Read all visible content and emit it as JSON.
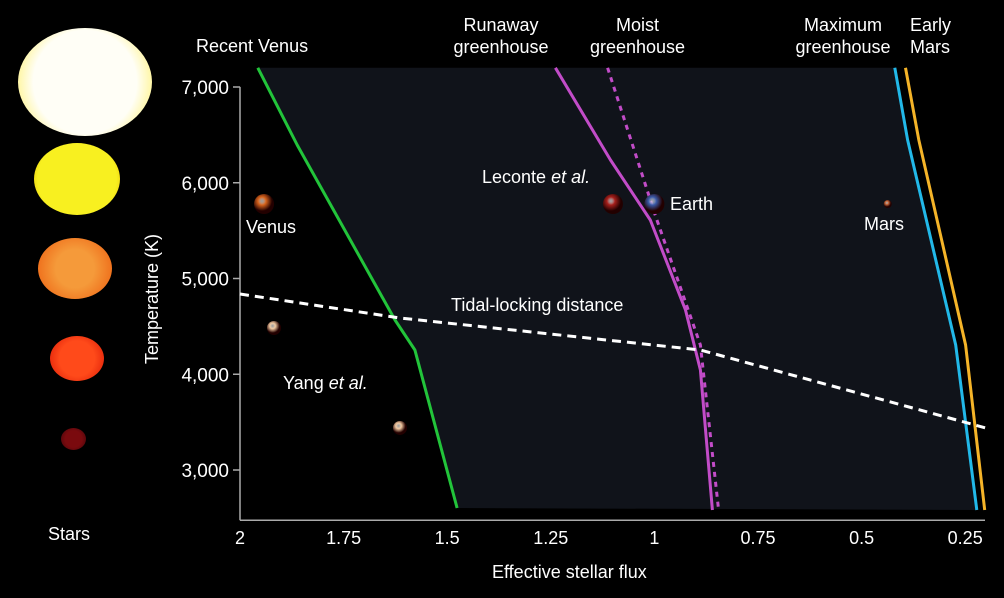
{
  "stars": {
    "label": "Stars",
    "colors": [
      "#fffbe8",
      "#f6ee10",
      "#f08a2a",
      "#f2300e",
      "#5a0608"
    ]
  },
  "chart_data": {
    "type": "line",
    "xlabel": "Effective stellar flux",
    "ylabel": "Temperature (K)",
    "xlim": [
      2.0,
      0.2
    ],
    "ylim": [
      2580,
      7200
    ],
    "x_reversed": true,
    "x_ticks": [
      2,
      1.75,
      1.5,
      1.25,
      1,
      0.75,
      0.5,
      0.25
    ],
    "x_tick_labels": [
      "2",
      "1.75",
      "1.5",
      "1.25",
      "1",
      "0.75",
      "0.5",
      "0.25"
    ],
    "y_ticks": [
      3000,
      4000,
      5000,
      6000,
      7000
    ],
    "y_tick_labels": [
      "3,000",
      "4,000",
      "5,000",
      "6,000",
      "7,000"
    ],
    "grid": false,
    "habitable_zone_fill": "#10131a",
    "series": [
      {
        "name": "Recent Venus",
        "color": "#22c43a",
        "dash": false,
        "points": [
          [
            1.957,
            7200
          ],
          [
            1.862,
            6394
          ],
          [
            1.626,
            4567
          ],
          [
            1.578,
            4253
          ],
          [
            1.476,
            2603
          ]
        ]
      },
      {
        "name": "Runaway greenhouse",
        "color": "#c24cc8",
        "dash": false,
        "points": [
          [
            1.239,
            7200
          ],
          [
            1.106,
            6238
          ],
          [
            1.01,
            5611
          ],
          [
            0.925,
            4671
          ],
          [
            0.889,
            4044
          ],
          [
            0.86,
            2582
          ]
        ]
      },
      {
        "name": "Moist greenhouse",
        "color": "#c24cc8",
        "dash": true,
        "points": [
          [
            1.113,
            7200
          ],
          [
            0.998,
            5663
          ],
          [
            0.889,
            4305
          ],
          [
            0.845,
            2582
          ]
        ]
      },
      {
        "name": "Maximum greenhouse",
        "color": "#22b8e8",
        "dash": false,
        "points": [
          [
            0.42,
            7200
          ],
          [
            0.389,
            6447
          ],
          [
            0.273,
            4305
          ],
          [
            0.222,
            2582
          ]
        ]
      },
      {
        "name": "Early Mars",
        "color": "#f5b428",
        "dash": false,
        "points": [
          [
            0.394,
            7200
          ],
          [
            0.362,
            6447
          ],
          [
            0.249,
            4305
          ],
          [
            0.203,
            2582
          ]
        ]
      },
      {
        "name": "Tidal-locking distance",
        "color": "#ffffff",
        "dash": true,
        "points": [
          [
            2.0,
            4838
          ],
          [
            1.614,
            4587
          ],
          [
            0.889,
            4253
          ],
          [
            0.2,
            3439
          ]
        ]
      }
    ],
    "planets": [
      {
        "name": "Venus",
        "flux": 1.942,
        "temp": 5778,
        "color": "#d8641c"
      },
      {
        "name": "Earth",
        "flux": 1.0,
        "temp": 5778,
        "color": "#3a5aa8"
      },
      {
        "name": "Leconte et al. planet",
        "flux": 1.1,
        "temp": 5778,
        "color": "#a8201c"
      },
      {
        "name": "Mars",
        "flux": 0.437,
        "temp": 5778,
        "color": "#c8683a"
      },
      {
        "name": "Yang et al. planet 1",
        "flux": 1.918,
        "temp": 4483,
        "color": "#f0c8a0"
      },
      {
        "name": "Yang et al. planet 2",
        "flux": 1.614,
        "temp": 3439,
        "color": "#f0c8a0"
      }
    ],
    "annotations": {
      "recent_venus": "Recent Venus",
      "runaway_1": "Runaway",
      "runaway_2": "greenhouse",
      "moist_1": "Moist",
      "moist_2": "greenhouse",
      "max_1": "Maximum",
      "max_2": "greenhouse",
      "early_1": "Early",
      "early_2": "Mars",
      "venus": "Venus",
      "earth": "Earth",
      "mars": "Mars",
      "leconte_a": "Leconte ",
      "leconte_b": "et al.",
      "yang_a": "Yang ",
      "yang_b": "et al.",
      "tidal": "Tidal-locking distance"
    }
  }
}
